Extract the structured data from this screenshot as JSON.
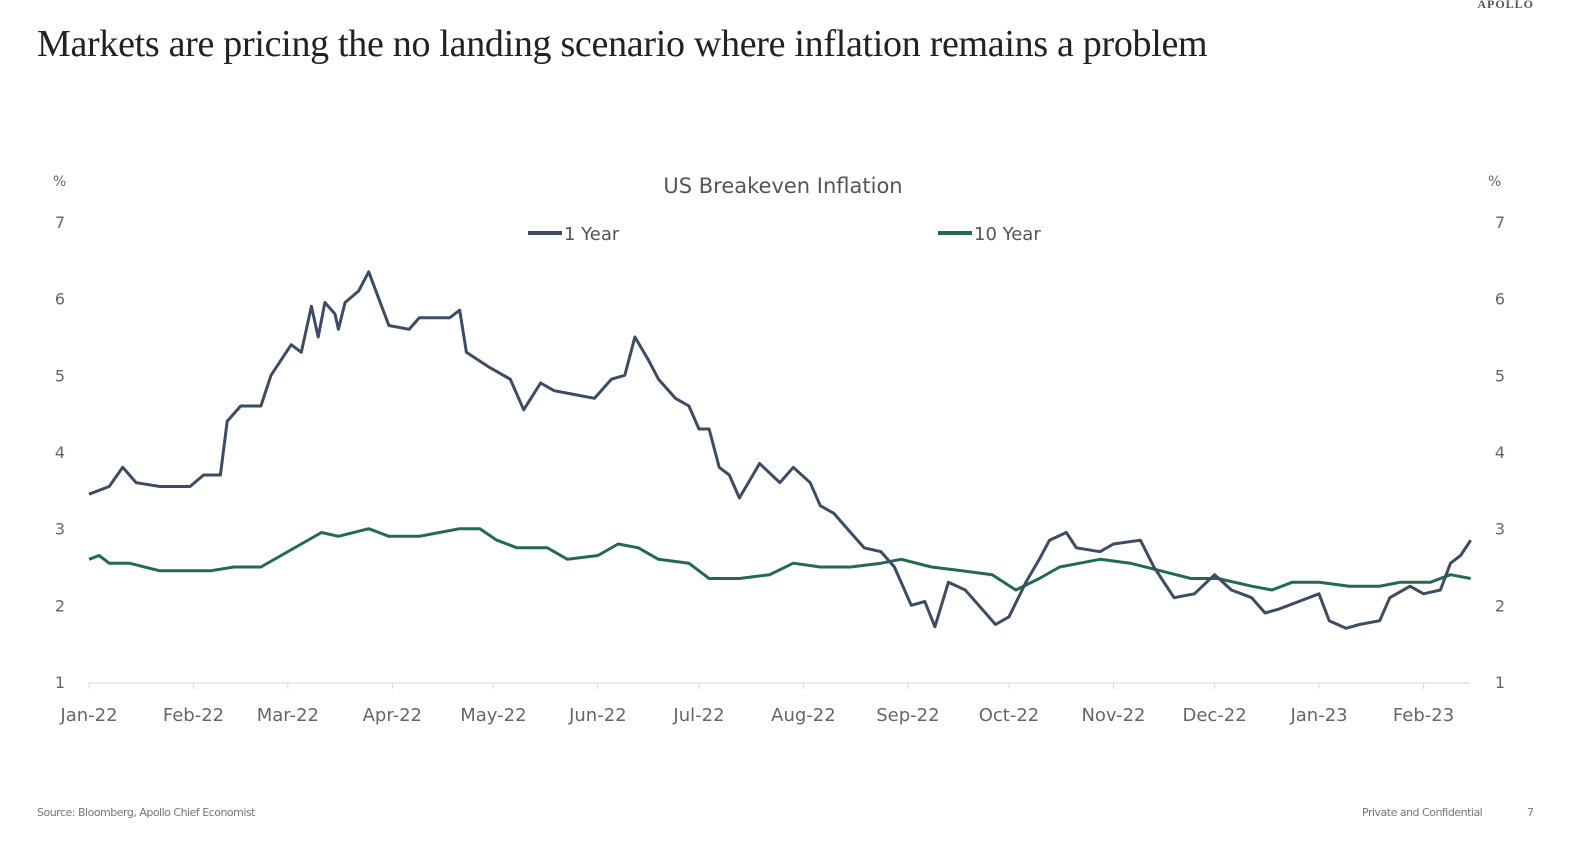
{
  "header": {
    "title": "Markets are pricing the no landing scenario where inflation remains a problem",
    "logo": "APOLLO"
  },
  "footer": {
    "source": "Source: Bloomberg, Apollo Chief Economist",
    "confidential": "Private and Confidential",
    "page": "7"
  },
  "colors": {
    "one_year": "#3d4b63",
    "ten_year": "#236b4e"
  },
  "chart_data": {
    "type": "line",
    "title": "US Breakeven Inflation",
    "ylabel_left": "%",
    "ylabel_right": "%",
    "ylim": [
      1,
      7
    ],
    "yticks": [
      "1",
      "2",
      "3",
      "4",
      "5",
      "6",
      "7"
    ],
    "xlim": [
      "2022-01-01",
      "2023-02-18"
    ],
    "xticks": [
      [
        "2022-01-01",
        "Jan-22"
      ],
      [
        "2022-02-01",
        "Feb-22"
      ],
      [
        "2022-03-01",
        "Mar-22"
      ],
      [
        "2022-04-01",
        "Apr-22"
      ],
      [
        "2022-05-01",
        "May-22"
      ],
      [
        "2022-06-01",
        "Jun-22"
      ],
      [
        "2022-07-01",
        "Jul-22"
      ],
      [
        "2022-08-01",
        "Aug-22"
      ],
      [
        "2022-09-01",
        "Sep-22"
      ],
      [
        "2022-10-01",
        "Oct-22"
      ],
      [
        "2022-11-01",
        "Nov-22"
      ],
      [
        "2022-12-01",
        "Dec-22"
      ],
      [
        "2023-01-01",
        "Jan-23"
      ],
      [
        "2023-02-01",
        "Feb-23"
      ]
    ],
    "legend_position": "top",
    "grid": false,
    "series": [
      {
        "name": "1 Year",
        "points": [
          [
            "2022-01-01",
            3.45
          ],
          [
            "2022-01-07",
            3.55
          ],
          [
            "2022-01-11",
            3.8
          ],
          [
            "2022-01-15",
            3.6
          ],
          [
            "2022-01-22",
            3.55
          ],
          [
            "2022-01-31",
            3.55
          ],
          [
            "2022-02-04",
            3.7
          ],
          [
            "2022-02-09",
            3.7
          ],
          [
            "2022-02-11",
            4.4
          ],
          [
            "2022-02-15",
            4.6
          ],
          [
            "2022-02-21",
            4.6
          ],
          [
            "2022-02-24",
            5.0
          ],
          [
            "2022-03-02",
            5.4
          ],
          [
            "2022-03-05",
            5.3
          ],
          [
            "2022-03-08",
            5.9
          ],
          [
            "2022-03-10",
            5.5
          ],
          [
            "2022-03-12",
            5.95
          ],
          [
            "2022-03-15",
            5.8
          ],
          [
            "2022-03-16",
            5.6
          ],
          [
            "2022-03-18",
            5.95
          ],
          [
            "2022-03-22",
            6.1
          ],
          [
            "2022-03-25",
            6.35
          ],
          [
            "2022-03-28",
            6.0
          ],
          [
            "2022-03-31",
            5.65
          ],
          [
            "2022-04-06",
            5.6
          ],
          [
            "2022-04-09",
            5.75
          ],
          [
            "2022-04-18",
            5.75
          ],
          [
            "2022-04-21",
            5.85
          ],
          [
            "2022-04-23",
            5.3
          ],
          [
            "2022-04-30",
            5.1
          ],
          [
            "2022-05-06",
            4.95
          ],
          [
            "2022-05-10",
            4.55
          ],
          [
            "2022-05-15",
            4.9
          ],
          [
            "2022-05-19",
            4.8
          ],
          [
            "2022-05-25",
            4.75
          ],
          [
            "2022-05-31",
            4.7
          ],
          [
            "2022-06-05",
            4.95
          ],
          [
            "2022-06-09",
            5.0
          ],
          [
            "2022-06-12",
            5.5
          ],
          [
            "2022-06-16",
            5.2
          ],
          [
            "2022-06-19",
            4.95
          ],
          [
            "2022-06-24",
            4.7
          ],
          [
            "2022-06-28",
            4.6
          ],
          [
            "2022-07-01",
            4.3
          ],
          [
            "2022-07-04",
            4.3
          ],
          [
            "2022-07-07",
            3.8
          ],
          [
            "2022-07-10",
            3.7
          ],
          [
            "2022-07-13",
            3.4
          ],
          [
            "2022-07-19",
            3.85
          ],
          [
            "2022-07-25",
            3.6
          ],
          [
            "2022-07-29",
            3.8
          ],
          [
            "2022-08-03",
            3.6
          ],
          [
            "2022-08-06",
            3.3
          ],
          [
            "2022-08-10",
            3.2
          ],
          [
            "2022-08-15",
            2.95
          ],
          [
            "2022-08-19",
            2.75
          ],
          [
            "2022-08-24",
            2.7
          ],
          [
            "2022-08-28",
            2.5
          ],
          [
            "2022-09-02",
            2.0
          ],
          [
            "2022-09-06",
            2.05
          ],
          [
            "2022-09-09",
            1.72
          ],
          [
            "2022-09-13",
            2.3
          ],
          [
            "2022-09-18",
            2.2
          ],
          [
            "2022-09-22",
            2.0
          ],
          [
            "2022-09-27",
            1.75
          ],
          [
            "2022-10-01",
            1.85
          ],
          [
            "2022-10-06",
            2.3
          ],
          [
            "2022-10-10",
            2.6
          ],
          [
            "2022-10-13",
            2.85
          ],
          [
            "2022-10-18",
            2.95
          ],
          [
            "2022-10-21",
            2.75
          ],
          [
            "2022-10-28",
            2.7
          ],
          [
            "2022-11-01",
            2.8
          ],
          [
            "2022-11-09",
            2.85
          ],
          [
            "2022-11-13",
            2.5
          ],
          [
            "2022-11-19",
            2.1
          ],
          [
            "2022-11-25",
            2.15
          ],
          [
            "2022-12-01",
            2.4
          ],
          [
            "2022-12-06",
            2.2
          ],
          [
            "2022-12-12",
            2.1
          ],
          [
            "2022-12-16",
            1.9
          ],
          [
            "2022-12-20",
            1.95
          ],
          [
            "2022-12-26",
            2.05
          ],
          [
            "2023-01-01",
            2.15
          ],
          [
            "2023-01-04",
            1.8
          ],
          [
            "2023-01-09",
            1.7
          ],
          [
            "2023-01-13",
            1.75
          ],
          [
            "2023-01-19",
            1.8
          ],
          [
            "2023-01-22",
            2.1
          ],
          [
            "2023-01-28",
            2.25
          ],
          [
            "2023-02-01",
            2.15
          ],
          [
            "2023-02-06",
            2.2
          ],
          [
            "2023-02-09",
            2.55
          ],
          [
            "2023-02-12",
            2.65
          ],
          [
            "2023-02-15",
            2.85
          ]
        ]
      },
      {
        "name": "10 Year",
        "points": [
          [
            "2022-01-01",
            2.6
          ],
          [
            "2022-01-04",
            2.65
          ],
          [
            "2022-01-07",
            2.55
          ],
          [
            "2022-01-13",
            2.55
          ],
          [
            "2022-01-22",
            2.45
          ],
          [
            "2022-01-31",
            2.45
          ],
          [
            "2022-02-06",
            2.45
          ],
          [
            "2022-02-13",
            2.5
          ],
          [
            "2022-02-21",
            2.5
          ],
          [
            "2022-02-27",
            2.65
          ],
          [
            "2022-03-05",
            2.8
          ],
          [
            "2022-03-11",
            2.95
          ],
          [
            "2022-03-16",
            2.9
          ],
          [
            "2022-03-25",
            3.0
          ],
          [
            "2022-03-31",
            2.9
          ],
          [
            "2022-04-09",
            2.9
          ],
          [
            "2022-04-15",
            2.95
          ],
          [
            "2022-04-21",
            3.0
          ],
          [
            "2022-04-27",
            3.0
          ],
          [
            "2022-05-02",
            2.85
          ],
          [
            "2022-05-08",
            2.75
          ],
          [
            "2022-05-17",
            2.75
          ],
          [
            "2022-05-23",
            2.6
          ],
          [
            "2022-06-01",
            2.65
          ],
          [
            "2022-06-07",
            2.8
          ],
          [
            "2022-06-13",
            2.75
          ],
          [
            "2022-06-19",
            2.6
          ],
          [
            "2022-06-28",
            2.55
          ],
          [
            "2022-07-04",
            2.35
          ],
          [
            "2022-07-13",
            2.35
          ],
          [
            "2022-07-22",
            2.4
          ],
          [
            "2022-07-29",
            2.55
          ],
          [
            "2022-08-06",
            2.5
          ],
          [
            "2022-08-15",
            2.5
          ],
          [
            "2022-08-24",
            2.55
          ],
          [
            "2022-08-30",
            2.6
          ],
          [
            "2022-09-08",
            2.5
          ],
          [
            "2022-09-17",
            2.45
          ],
          [
            "2022-09-26",
            2.4
          ],
          [
            "2022-10-03",
            2.2
          ],
          [
            "2022-10-10",
            2.35
          ],
          [
            "2022-10-16",
            2.5
          ],
          [
            "2022-10-22",
            2.55
          ],
          [
            "2022-10-28",
            2.6
          ],
          [
            "2022-11-06",
            2.55
          ],
          [
            "2022-11-15",
            2.45
          ],
          [
            "2022-11-24",
            2.35
          ],
          [
            "2022-12-02",
            2.35
          ],
          [
            "2022-12-12",
            2.25
          ],
          [
            "2022-12-18",
            2.2
          ],
          [
            "2022-12-24",
            2.3
          ],
          [
            "2023-01-01",
            2.3
          ],
          [
            "2023-01-10",
            2.25
          ],
          [
            "2023-01-19",
            2.25
          ],
          [
            "2023-01-25",
            2.3
          ],
          [
            "2023-02-03",
            2.3
          ],
          [
            "2023-02-09",
            2.4
          ],
          [
            "2023-02-15",
            2.35
          ]
        ]
      }
    ]
  }
}
